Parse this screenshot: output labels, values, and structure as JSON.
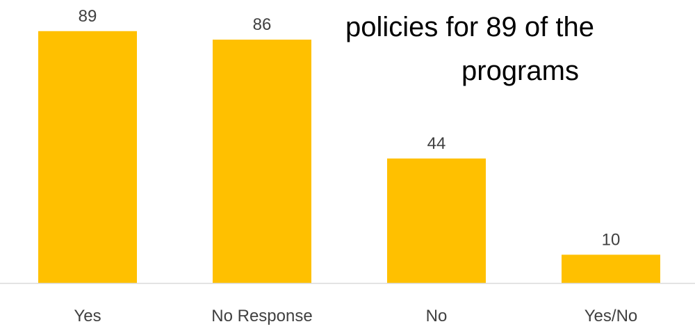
{
  "chart_data": {
    "type": "bar",
    "title": "",
    "xlabel": "",
    "ylabel": "",
    "categories": [
      "Yes",
      "No Response",
      "No",
      "Yes/No"
    ],
    "values": [
      89,
      86,
      44,
      10
    ],
    "data_labels": [
      "89",
      "86",
      "44",
      "10"
    ],
    "ylim": [
      0,
      100
    ],
    "grid": false,
    "legend": "none",
    "annotation_lines": [
      "policies for 89 of the",
      "programs"
    ]
  },
  "colors": {
    "bar": "#FFC000",
    "axis_line": "#D9D9D9",
    "label_text": "#404040",
    "annotation_text": "#000000"
  }
}
